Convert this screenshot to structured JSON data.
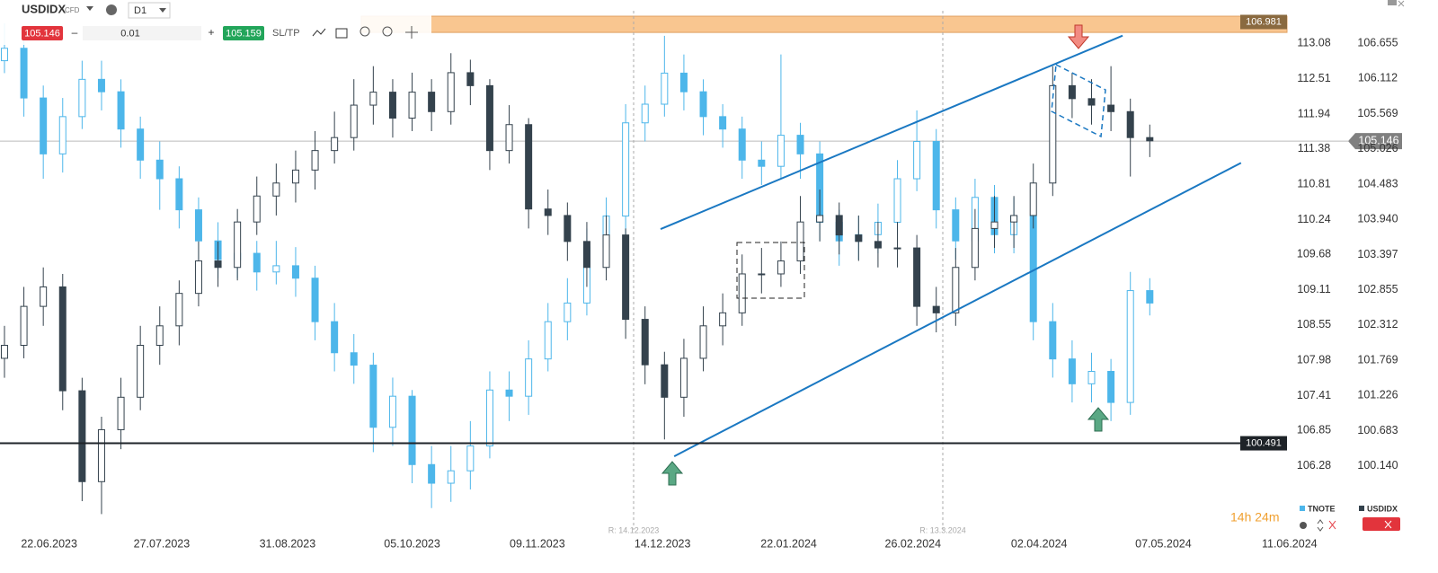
{
  "toolbar": {
    "symbol": "USDIDX",
    "symbol_type": "CFD",
    "timeframe": "D1",
    "sell_price": "105.146",
    "minus": "–",
    "lot": "0.01",
    "plus": "+",
    "buy_price": "105.159",
    "sltp": "SL/TP"
  },
  "annotations": {
    "release_1": "R: 14.12.2023",
    "release_2": "R: 13.3.2024",
    "countdown": "14h 24m"
  },
  "chart_data": {
    "type": "candlestick",
    "xlim": [
      -0.23,
      66.44
    ],
    "xticks": [
      {
        "value": 2.3,
        "label": "22.06.2023"
      },
      {
        "value": 8.1,
        "label": "27.07.2023"
      },
      {
        "value": 14.58,
        "label": "31.08.2023"
      },
      {
        "value": 21.0,
        "label": "05.10.2023"
      },
      {
        "value": 27.45,
        "label": "09.11.2023"
      },
      {
        "value": 33.9,
        "label": "14.12.2023"
      },
      {
        "value": 40.4,
        "label": "22.01.2024"
      },
      {
        "value": 46.8,
        "label": "26.02.2024"
      },
      {
        "value": 53.3,
        "label": "02.04.2024"
      },
      {
        "value": 59.7,
        "label": "07.05.2024"
      },
      {
        "value": 66.2,
        "label": "11.06.2024"
      }
    ],
    "ylim": [
      99.129,
      107.112
    ],
    "yticks": [
      106.655,
      106.112,
      105.569,
      105.026,
      104.483,
      {
        "value": 103.94,
        "label": "103.940"
      },
      103.397,
      102.855,
      102.312,
      101.769,
      101.226,
      100.683,
      {
        "value": 100.14,
        "label": "100.140"
      }
    ],
    "y2lim": [
      105.22,
      113.56
    ],
    "y2ticks": [
      113.08,
      112.51,
      111.94,
      111.38,
      110.81,
      110.24,
      109.68,
      109.11,
      108.55,
      107.98,
      107.41,
      106.85,
      106.28
    ],
    "series": [
      {
        "name": "TNOTE",
        "color": "#4db6ea",
        "axis": "y2",
        "candles": [
          [
            112.8,
            113.4,
            112.6,
            113.0
          ],
          [
            113.0,
            113.2,
            111.9,
            112.2
          ],
          [
            112.2,
            112.4,
            110.9,
            111.3
          ],
          [
            111.3,
            112.2,
            111.0,
            111.9
          ],
          [
            111.9,
            112.8,
            111.7,
            112.5
          ],
          [
            112.5,
            112.8,
            112.0,
            112.3
          ],
          [
            112.3,
            112.5,
            111.4,
            111.7
          ],
          [
            111.7,
            111.9,
            110.9,
            111.2
          ],
          [
            111.2,
            111.5,
            110.4,
            110.9
          ],
          [
            110.9,
            111.1,
            110.1,
            110.4
          ],
          [
            110.4,
            110.6,
            109.6,
            109.9
          ],
          [
            109.9,
            110.2,
            109.3,
            109.6
          ],
          [
            109.6,
            110.1,
            109.3,
            109.7
          ],
          [
            109.7,
            109.9,
            109.1,
            109.4
          ],
          [
            109.4,
            109.9,
            109.2,
            109.5
          ],
          [
            109.5,
            109.8,
            109.0,
            109.3
          ],
          [
            109.3,
            109.5,
            108.3,
            108.6
          ],
          [
            108.6,
            108.9,
            107.8,
            108.1
          ],
          [
            108.1,
            108.4,
            107.6,
            107.9
          ],
          [
            107.9,
            108.1,
            106.5,
            106.9
          ],
          [
            106.9,
            107.7,
            106.6,
            107.4
          ],
          [
            107.4,
            107.5,
            106.0,
            106.3
          ],
          [
            106.3,
            106.6,
            105.6,
            106.0
          ],
          [
            106.0,
            106.6,
            105.7,
            106.2
          ],
          [
            106.2,
            107.0,
            105.9,
            106.6
          ],
          [
            106.6,
            107.8,
            106.4,
            107.5
          ],
          [
            107.5,
            107.8,
            107.0,
            107.4
          ],
          [
            107.4,
            108.3,
            107.1,
            108.0
          ],
          [
            108.0,
            108.9,
            107.8,
            108.6
          ],
          [
            108.6,
            109.3,
            108.3,
            108.9
          ],
          [
            108.9,
            110.1,
            108.7,
            109.8
          ],
          [
            109.8,
            110.6,
            109.5,
            110.3
          ],
          [
            110.3,
            112.1,
            110.0,
            111.8
          ],
          [
            111.8,
            112.4,
            111.5,
            112.1
          ],
          [
            112.1,
            113.2,
            111.9,
            112.6
          ],
          [
            112.6,
            112.9,
            112.0,
            112.3
          ],
          [
            112.3,
            112.5,
            111.6,
            111.9
          ],
          [
            111.9,
            112.1,
            111.4,
            111.7
          ],
          [
            111.7,
            111.9,
            110.9,
            111.2
          ],
          [
            111.2,
            111.5,
            110.8,
            111.1
          ],
          [
            111.1,
            112.9,
            110.9,
            111.6
          ],
          [
            111.6,
            111.8,
            110.9,
            111.3
          ],
          [
            111.3,
            111.5,
            109.9,
            110.2
          ],
          [
            110.2,
            110.4,
            109.5,
            109.9
          ],
          [
            109.9,
            110.3,
            109.6,
            110.0
          ],
          [
            110.0,
            110.5,
            109.7,
            110.2
          ],
          [
            110.2,
            111.2,
            110.0,
            110.9
          ],
          [
            110.9,
            112.0,
            110.7,
            111.5
          ],
          [
            111.5,
            111.7,
            110.1,
            110.4
          ],
          [
            110.4,
            110.6,
            109.6,
            109.9
          ],
          [
            109.9,
            110.9,
            109.7,
            110.6
          ],
          [
            110.6,
            110.8,
            109.7,
            110.0
          ],
          [
            110.0,
            110.6,
            109.7,
            110.3
          ],
          [
            110.3,
            110.5,
            108.3,
            108.6
          ],
          [
            108.6,
            108.9,
            107.7,
            108.0
          ],
          [
            108.0,
            108.3,
            107.3,
            107.6
          ],
          [
            107.6,
            108.1,
            107.3,
            107.8
          ],
          [
            107.8,
            108.0,
            107.0,
            107.3
          ],
          [
            107.3,
            109.4,
            107.1,
            109.1
          ],
          [
            109.1,
            109.3,
            108.7,
            108.9
          ]
        ]
      },
      {
        "name": "USDIDX",
        "color": "#34424d",
        "candles": [
          [
            101.8,
            102.3,
            101.5,
            102.0
          ],
          [
            102.0,
            102.9,
            101.8,
            102.6
          ],
          [
            102.6,
            103.2,
            102.3,
            102.9
          ],
          [
            102.9,
            103.1,
            101.0,
            101.3
          ],
          [
            101.3,
            101.5,
            99.6,
            99.9
          ],
          [
            99.9,
            100.9,
            99.4,
            100.7
          ],
          [
            100.7,
            101.5,
            100.4,
            101.2
          ],
          [
            101.2,
            102.3,
            101.0,
            102.0
          ],
          [
            102.0,
            102.6,
            101.7,
            102.3
          ],
          [
            102.3,
            103.0,
            102.0,
            102.8
          ],
          [
            102.8,
            103.6,
            102.6,
            103.3
          ],
          [
            103.3,
            103.6,
            102.9,
            103.2
          ],
          [
            103.2,
            104.1,
            103.0,
            103.9
          ],
          [
            103.9,
            104.6,
            103.7,
            104.3
          ],
          [
            104.3,
            104.8,
            104.0,
            104.5
          ],
          [
            104.5,
            105.0,
            104.2,
            104.7
          ],
          [
            104.7,
            105.3,
            104.4,
            105.0
          ],
          [
            105.0,
            105.6,
            104.8,
            105.2
          ],
          [
            105.2,
            106.1,
            105.0,
            105.7
          ],
          [
            105.7,
            106.3,
            105.4,
            105.9
          ],
          [
            105.9,
            106.1,
            105.2,
            105.5
          ],
          [
            105.5,
            106.2,
            105.3,
            105.9
          ],
          [
            105.9,
            106.1,
            105.3,
            105.6
          ],
          [
            105.6,
            106.5,
            105.4,
            106.2
          ],
          [
            106.2,
            106.4,
            105.7,
            106.0
          ],
          [
            106.0,
            106.1,
            104.7,
            105.0
          ],
          [
            105.0,
            105.7,
            104.8,
            105.4
          ],
          [
            105.4,
            105.5,
            103.8,
            104.1
          ],
          [
            104.1,
            104.4,
            103.7,
            104.0
          ],
          [
            104.0,
            104.2,
            103.3,
            103.6
          ],
          [
            103.6,
            103.9,
            102.9,
            103.2
          ],
          [
            103.2,
            104.0,
            103.0,
            103.7
          ],
          [
            103.7,
            103.8,
            102.1,
            102.4
          ],
          [
            102.4,
            102.6,
            101.4,
            101.7
          ],
          [
            101.7,
            101.9,
            100.55,
            101.2
          ],
          [
            101.2,
            102.1,
            100.9,
            101.8
          ],
          [
            101.8,
            102.6,
            101.6,
            102.3
          ],
          [
            102.3,
            102.8,
            102.0,
            102.5
          ],
          [
            102.5,
            103.4,
            102.3,
            103.1
          ],
          [
            103.1,
            103.5,
            102.8,
            103.1
          ],
          [
            103.1,
            103.6,
            102.9,
            103.3
          ],
          [
            103.3,
            104.3,
            103.1,
            103.9
          ],
          [
            103.9,
            104.4,
            103.6,
            104.0
          ],
          [
            104.0,
            104.2,
            103.4,
            103.7
          ],
          [
            103.7,
            104.0,
            103.3,
            103.6
          ],
          [
            103.6,
            103.9,
            103.2,
            103.5
          ],
          [
            103.5,
            103.9,
            103.2,
            103.5
          ],
          [
            103.5,
            103.7,
            102.3,
            102.6
          ],
          [
            102.6,
            102.9,
            102.2,
            102.5
          ],
          [
            102.5,
            103.5,
            102.3,
            103.2
          ],
          [
            103.2,
            104.1,
            103.0,
            103.8
          ],
          [
            103.8,
            104.3,
            103.5,
            103.9
          ],
          [
            103.9,
            104.3,
            103.5,
            104.0
          ],
          [
            104.0,
            104.8,
            103.8,
            104.5
          ],
          [
            104.5,
            106.3,
            104.3,
            106.0
          ],
          [
            106.0,
            106.2,
            105.5,
            105.8
          ],
          [
            105.8,
            106.1,
            105.4,
            105.7
          ],
          [
            105.7,
            106.3,
            105.3,
            105.6
          ],
          [
            105.6,
            105.8,
            104.6,
            105.2
          ],
          [
            105.2,
            105.4,
            104.9,
            105.15
          ]
        ]
      }
    ],
    "resistance_zone": {
      "value": 106.981,
      "range": [
        106.82,
        107.07
      ],
      "color": "#f9c690"
    },
    "support_line": {
      "value": 100.491,
      "color": "#1e2328"
    },
    "current_price": {
      "value": 105.146,
      "color": "#808080"
    },
    "trendlines": [
      {
        "color": "#1a78c2",
        "points": [
          [
            33.8,
            103.79
          ],
          [
            57.6,
            106.77
          ]
        ]
      },
      {
        "color": "#1a78c2",
        "points": [
          [
            34.5,
            100.29
          ],
          [
            63.7,
            104.81
          ]
        ]
      }
    ]
  }
}
